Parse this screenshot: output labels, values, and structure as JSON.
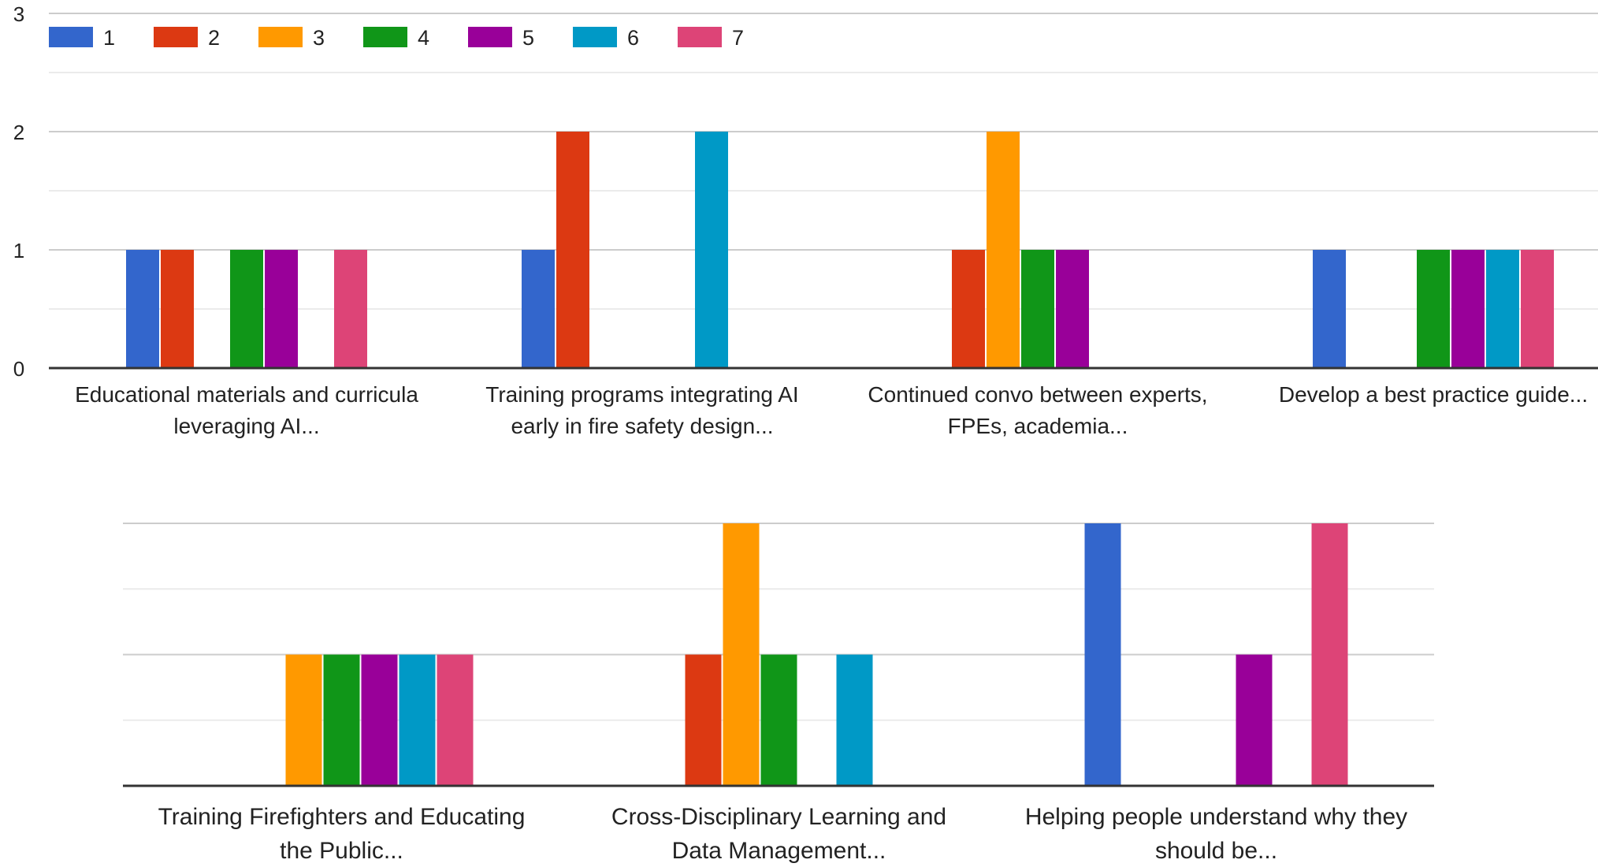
{
  "chart_data": [
    {
      "type": "bar",
      "title": "",
      "xlabel": "",
      "ylabel": "",
      "ylim": [
        0,
        3
      ],
      "yticks": [
        "0",
        "1",
        "2",
        "3"
      ],
      "grid": true,
      "legend_position": "top-left",
      "categories": [
        [
          "Educational materials and curricula",
          "leveraging AI..."
        ],
        [
          "Training programs integrating AI",
          "early in fire safety design..."
        ],
        [
          "Continued convo between experts,",
          "FPEs, academia..."
        ],
        [
          "Develop a best practice guide..."
        ]
      ],
      "series": [
        {
          "name": "1",
          "color": "#3366cc",
          "values": [
            1,
            1,
            0,
            1
          ]
        },
        {
          "name": "2",
          "color": "#dc3912",
          "values": [
            1,
            2,
            1,
            0
          ]
        },
        {
          "name": "3",
          "color": "#ff9900",
          "values": [
            0,
            0,
            2,
            0
          ]
        },
        {
          "name": "4",
          "color": "#109618",
          "values": [
            1,
            0,
            1,
            1
          ]
        },
        {
          "name": "5",
          "color": "#990099",
          "values": [
            1,
            0,
            1,
            1
          ]
        },
        {
          "name": "6",
          "color": "#0099c6",
          "values": [
            0,
            2,
            0,
            1
          ]
        },
        {
          "name": "7",
          "color": "#dd4477",
          "values": [
            1,
            0,
            0,
            1
          ]
        }
      ]
    },
    {
      "type": "bar",
      "title": "",
      "xlabel": "",
      "ylabel": "",
      "ylim": [
        0,
        2
      ],
      "grid": true,
      "categories": [
        [
          "Training Firefighters and Educating",
          "the Public..."
        ],
        [
          "Cross-Disciplinary Learning and",
          "Data Management..."
        ],
        [
          "Helping people understand why they",
          "should be..."
        ]
      ],
      "series": [
        {
          "name": "1",
          "color": "#3366cc",
          "values": [
            0,
            0,
            2
          ]
        },
        {
          "name": "2",
          "color": "#dc3912",
          "values": [
            0,
            1,
            0
          ]
        },
        {
          "name": "3",
          "color": "#ff9900",
          "values": [
            1,
            2,
            0
          ]
        },
        {
          "name": "4",
          "color": "#109618",
          "values": [
            1,
            1,
            0
          ]
        },
        {
          "name": "5",
          "color": "#990099",
          "values": [
            1,
            0,
            1
          ]
        },
        {
          "name": "6",
          "color": "#0099c6",
          "values": [
            1,
            1,
            0
          ]
        },
        {
          "name": "7",
          "color": "#dd4477",
          "values": [
            1,
            0,
            2
          ]
        }
      ]
    }
  ]
}
